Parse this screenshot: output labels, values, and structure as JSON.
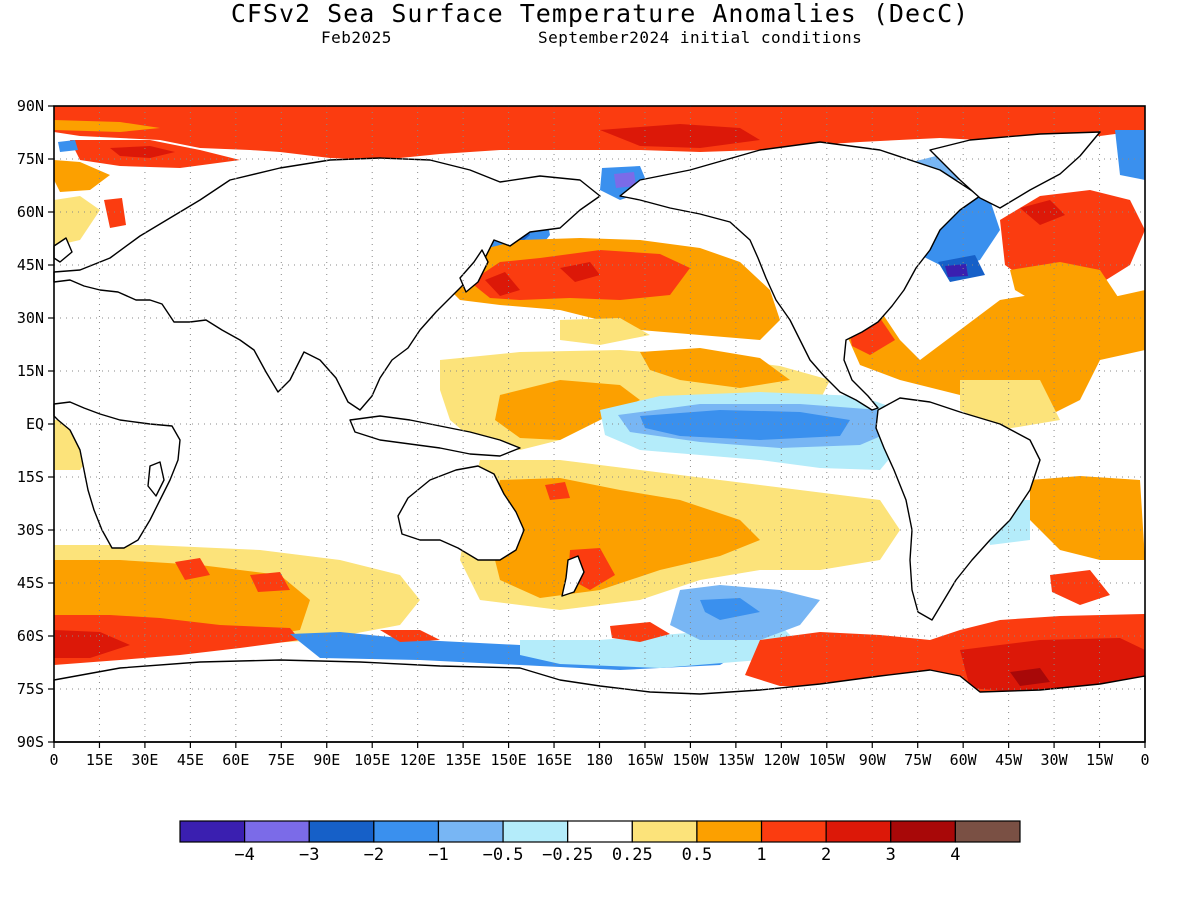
{
  "title": "CFSv2 Sea Surface Temperature Anomalies (DecC)",
  "subtitle_left": "Feb2025",
  "subtitle_right": "September2024 initial conditions",
  "y_ticks": [
    "90N",
    "75N",
    "60N",
    "45N",
    "30N",
    "15N",
    "EQ",
    "15S",
    "30S",
    "45S",
    "60S",
    "75S",
    "90S"
  ],
  "x_ticks": [
    "0",
    "15E",
    "30E",
    "45E",
    "60E",
    "75E",
    "90E",
    "105E",
    "120E",
    "135E",
    "150E",
    "165E",
    "180",
    "165W",
    "150W",
    "135W",
    "120W",
    "105W",
    "90W",
    "75W",
    "60W",
    "45W",
    "30W",
    "15W",
    "0"
  ],
  "colorbar": {
    "colors": [
      "#3a1fb0",
      "#7b6be8",
      "#1660c8",
      "#3a90ee",
      "#78b6f4",
      "#b4ecfa",
      "#ffffff",
      "#fce37a",
      "#fca000",
      "#fb3c10",
      "#dc1808",
      "#a80808",
      "#7a5044"
    ],
    "labels": [
      "−4",
      "−3",
      "−2",
      "−1",
      "−0.5",
      "−0.25",
      "0.25",
      "0.5",
      "1",
      "2",
      "3",
      "4"
    ]
  }
}
